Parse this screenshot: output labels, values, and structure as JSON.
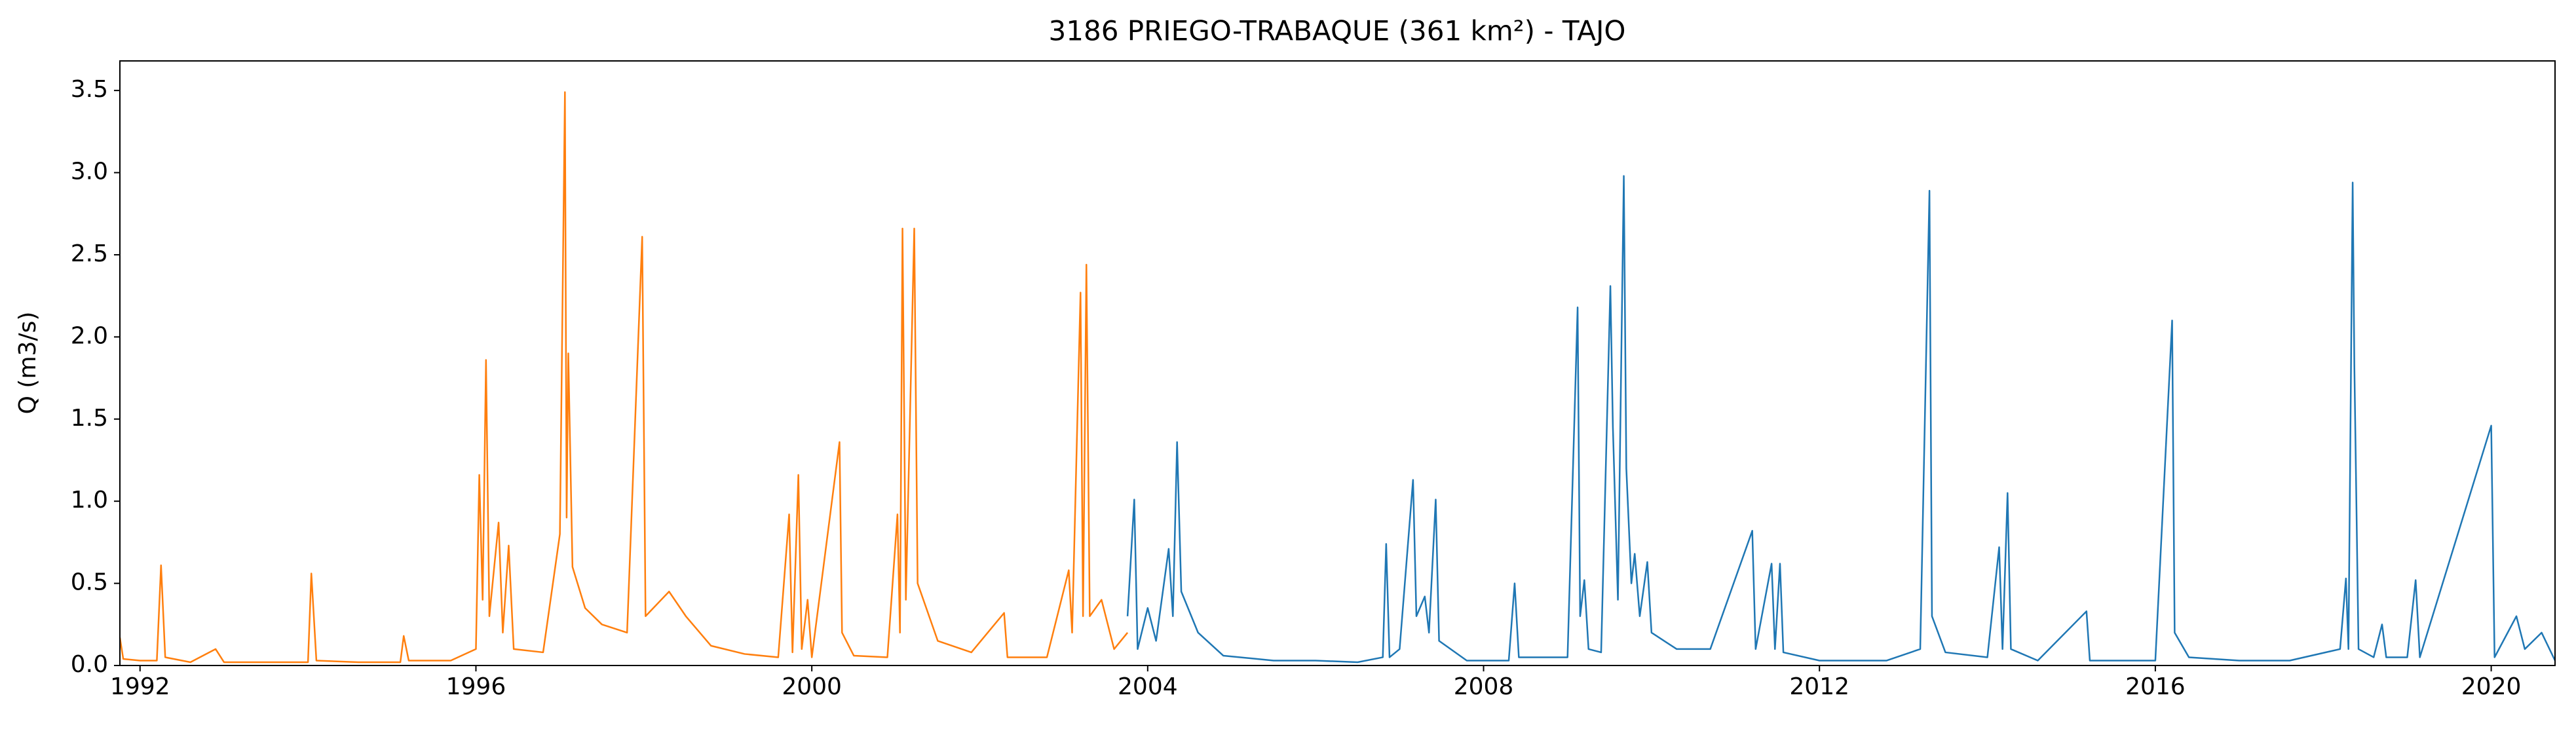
{
  "chart_data": {
    "type": "line",
    "title": "3186 PRIEGO-TRABAQUE (361 km²) - TAJO",
    "ylabel": "Q (m3/s)",
    "xlim": [
      1991.76,
      2020.76
    ],
    "xticks": [
      1992,
      1996,
      2000,
      2004,
      2008,
      2012,
      2016,
      2020
    ],
    "ylim": [
      0,
      3.68
    ],
    "yticks": [
      {
        "value": 0,
        "label": "0.0"
      },
      0.5,
      {
        "value": 1,
        "label": "1.0"
      },
      1.5,
      {
        "value": 2,
        "label": "2.0"
      },
      2.5,
      {
        "value": 3,
        "label": "3.0"
      },
      3.5
    ],
    "series": [
      {
        "color": "#ff7f0e",
        "x": [
          1991.76,
          1991.8,
          1992.0,
          1992.2,
          1992.25,
          1992.3,
          1992.6,
          1992.9,
          1993.0,
          1993.5,
          1994.0,
          1994.04,
          1994.1,
          1994.6,
          1995.1,
          1995.14,
          1995.2,
          1995.7,
          1996.0,
          1996.04,
          1996.08,
          1996.12,
          1996.16,
          1996.27,
          1996.32,
          1996.39,
          1996.45,
          1996.8,
          1997.0,
          1997.06,
          1997.08,
          1997.1,
          1997.15,
          1997.3,
          1997.5,
          1997.8,
          1997.98,
          1998.02,
          1998.3,
          1998.5,
          1998.8,
          1999.2,
          1999.6,
          1999.73,
          1999.77,
          1999.84,
          1999.88,
          1999.95,
          2000.0,
          2000.33,
          2000.36,
          2000.5,
          2000.9,
          2001.02,
          2001.05,
          2001.08,
          2001.12,
          2001.22,
          2001.26,
          2001.5,
          2001.9,
          2002.29,
          2002.33,
          2002.8,
          2003.06,
          2003.1,
          2003.2,
          2003.23,
          2003.27,
          2003.31,
          2003.45,
          2003.6,
          2003.76
        ],
        "values": [
          0.17,
          0.04,
          0.03,
          0.03,
          0.61,
          0.05,
          0.02,
          0.1,
          0.02,
          0.02,
          0.02,
          0.56,
          0.03,
          0.02,
          0.02,
          0.18,
          0.03,
          0.03,
          0.1,
          1.16,
          0.4,
          1.86,
          0.3,
          0.87,
          0.2,
          0.73,
          0.1,
          0.08,
          0.8,
          3.49,
          0.9,
          1.9,
          0.6,
          0.35,
          0.25,
          0.2,
          2.61,
          0.3,
          0.45,
          0.3,
          0.12,
          0.07,
          0.05,
          0.92,
          0.08,
          1.16,
          0.1,
          0.4,
          0.05,
          1.36,
          0.2,
          0.06,
          0.05,
          0.92,
          0.2,
          2.66,
          0.4,
          2.66,
          0.5,
          0.15,
          0.08,
          0.32,
          0.05,
          0.05,
          0.58,
          0.2,
          2.27,
          0.3,
          2.44,
          0.3,
          0.4,
          0.1,
          0.2
        ]
      },
      {
        "color": "#1f77b4",
        "x": [
          2003.76,
          2003.84,
          2003.88,
          2004.0,
          2004.1,
          2004.25,
          2004.3,
          2004.35,
          2004.4,
          2004.6,
          2004.9,
          2005.5,
          2006.0,
          2006.5,
          2006.8,
          2006.84,
          2006.88,
          2007.0,
          2007.16,
          2007.2,
          2007.3,
          2007.35,
          2007.43,
          2007.47,
          2007.8,
          2008.3,
          2008.37,
          2008.42,
          2009.0,
          2009.12,
          2009.15,
          2009.2,
          2009.25,
          2009.4,
          2009.51,
          2009.54,
          2009.6,
          2009.67,
          2009.7,
          2009.76,
          2009.8,
          2009.86,
          2009.95,
          2010.0,
          2010.3,
          2010.7,
          2011.2,
          2011.24,
          2011.43,
          2011.47,
          2011.53,
          2011.57,
          2012.0,
          2012.8,
          2013.2,
          2013.31,
          2013.34,
          2013.5,
          2014.0,
          2014.14,
          2014.18,
          2014.24,
          2014.28,
          2014.6,
          2015.18,
          2015.22,
          2016.0,
          2016.2,
          2016.23,
          2016.4,
          2017.0,
          2017.6,
          2018.2,
          2018.27,
          2018.3,
          2018.35,
          2018.37,
          2018.42,
          2018.6,
          2018.7,
          2018.75,
          2019.0,
          2019.1,
          2019.15,
          2020.0,
          2020.04,
          2020.3,
          2020.4,
          2020.6,
          2020.76
        ],
        "values": [
          0.3,
          1.01,
          0.1,
          0.35,
          0.15,
          0.71,
          0.3,
          1.36,
          0.45,
          0.2,
          0.06,
          0.03,
          0.03,
          0.02,
          0.05,
          0.74,
          0.05,
          0.1,
          1.13,
          0.3,
          0.42,
          0.2,
          1.01,
          0.15,
          0.03,
          0.03,
          0.5,
          0.05,
          0.05,
          2.18,
          0.3,
          0.52,
          0.1,
          0.08,
          2.31,
          1.45,
          0.4,
          2.98,
          1.2,
          0.5,
          0.68,
          0.3,
          0.63,
          0.2,
          0.1,
          0.1,
          0.82,
          0.1,
          0.62,
          0.1,
          0.62,
          0.08,
          0.03,
          0.03,
          0.1,
          2.89,
          0.3,
          0.08,
          0.05,
          0.72,
          0.1,
          1.05,
          0.1,
          0.03,
          0.33,
          0.03,
          0.03,
          2.1,
          0.2,
          0.05,
          0.03,
          0.03,
          0.1,
          0.53,
          0.1,
          2.94,
          1.83,
          0.1,
          0.05,
          0.25,
          0.05,
          0.05,
          0.52,
          0.05,
          1.46,
          0.05,
          0.3,
          0.1,
          0.2,
          0.03
        ]
      }
    ]
  }
}
